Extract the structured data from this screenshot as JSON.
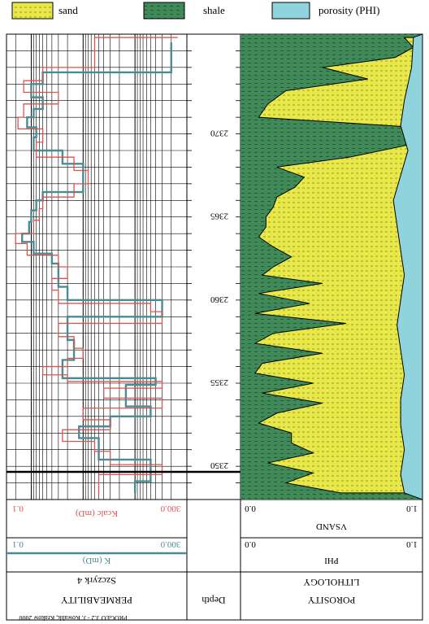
{
  "legend": {
    "sand": "sand",
    "shale": "shale",
    "porosity": "porosity (PHI)"
  },
  "colors": {
    "sand": "#e8e84a",
    "sand_dots": "#8a8a1a",
    "shale": "#3f8a58",
    "shale_dash": "#1e4a2c",
    "porosity": "#8fd4dc",
    "k_measured": "#4a8c94",
    "k_calc": "#d9534f"
  },
  "headers": {
    "left_title": "PERMEABILITY",
    "left_subtitle": "Szczyrk 4",
    "depth": "Depth",
    "right_title_line1": "POROSITY",
    "right_title_line2": "LITHOLOGY"
  },
  "scales": {
    "kcalc": {
      "label": "Kcalc (mD)",
      "min": "0.1",
      "max": "300.0"
    },
    "k": {
      "label": "K (mD)",
      "min": "0.1",
      "max": "300.0"
    },
    "vsand": {
      "label": "VSAND",
      "min": "0.0",
      "max": "1.0"
    },
    "phi": {
      "label": "PHI",
      "min": "0.0",
      "max": "1.0"
    }
  },
  "footer": "PROGEO 3.2 - J. Kowalik, Krakow 2000",
  "chart_data": [
    {
      "type": "line",
      "title": "PERMEABILITY",
      "subtitle": "Szczyrk 4",
      "xscale": "log",
      "xlim": [
        0.1,
        300
      ],
      "ylim": [
        2348,
        2376
      ],
      "ylabel": "Depth",
      "grid": true,
      "series": [
        {
          "name": "K (mD)",
          "y": [
            2375.5,
            2374.5,
            2373.7,
            2373.0,
            2372.2,
            2371.5,
            2371.0,
            2370.4,
            2369.8,
            2369.0,
            2368.2,
            2367.5,
            2366.5,
            2366.0,
            2365.4,
            2364.7,
            2364.0,
            2363.5,
            2362.8,
            2362.2,
            2361.5,
            2360.8,
            2360.0,
            2359.6,
            2359.0,
            2358.4,
            2357.6,
            2357.0,
            2356.4,
            2355.8,
            2355.3,
            2354.9,
            2354.4,
            2353.6,
            2353.0,
            2352.4,
            2351.7,
            2351.2,
            2350.4,
            2349.8,
            2349.1,
            2348.4
          ],
          "x": [
            0.2,
            0.2,
            0.2,
            60,
            100,
            60,
            90,
            120,
            80,
            90,
            25,
            10,
            10,
            60,
            80,
            100,
            110,
            150,
            90,
            40,
            30,
            30,
            20,
            0.3,
            0.3,
            20,
            20,
            15,
            15,
            25,
            25,
            0.4,
            1.5,
            1.5,
            0.5,
            3,
            12,
            5,
            5,
            0.5,
            0.5,
            1
          ]
        },
        {
          "name": "Kcalc (mD)",
          "y": [
            2375.8,
            2375.0,
            2374.0,
            2373.2,
            2372.5,
            2371.8,
            2371.0,
            2370.3,
            2369.5,
            2368.6,
            2367.8,
            2367.0,
            2366.2,
            2365.5,
            2364.8,
            2364.0,
            2363.4,
            2362.7,
            2362.0,
            2361.3,
            2360.6,
            2359.8,
            2359.3,
            2358.6,
            2357.8,
            2357.1,
            2356.5,
            2356.0,
            2355.5,
            2355.1,
            2354.7,
            2354.1,
            2353.5,
            2352.8,
            2352.2,
            2351.5,
            2350.9,
            2350.1,
            2349.5,
            2348.8,
            2348.3
          ],
          "x": [
            0.15,
            6,
            6,
            60,
            140,
            30,
            140,
            180,
            60,
            80,
            15,
            8,
            15,
            60,
            70,
            90,
            200,
            120,
            30,
            20,
            40,
            30,
            0.5,
            0.3,
            30,
            15,
            10,
            20,
            60,
            20,
            0.3,
            4,
            0.3,
            10,
            3,
            25,
            6,
            3,
            0.3,
            5,
            5
          ]
        }
      ]
    },
    {
      "type": "area",
      "title": "POROSITY LITHOLOGY",
      "xlim": [
        0.0,
        1.0
      ],
      "ylim": [
        2348,
        2376
      ],
      "ylabel": "Depth",
      "series": [
        {
          "name": "VSAND",
          "y": [
            2375.8,
            2375.2,
            2374.6,
            2374.0,
            2373.3,
            2372.6,
            2371.8,
            2371.0,
            2370.4,
            2370.0,
            2369.4,
            2368.6,
            2368.0,
            2367.4,
            2366.8,
            2366.2,
            2365.6,
            2365.0,
            2364.4,
            2363.8,
            2363.2,
            2362.6,
            2362.0,
            2361.5,
            2361.0,
            2360.4,
            2359.8,
            2359.2,
            2358.6,
            2358.0,
            2357.4,
            2356.8,
            2356.2,
            2355.6,
            2355.0,
            2354.4,
            2353.8,
            2353.2,
            2352.6,
            2352.0,
            2351.4,
            2350.8,
            2350.2,
            2349.6,
            2349.0,
            2348.4
          ],
          "x": [
            0.1,
            0.05,
            0.15,
            0.55,
            0.3,
            0.75,
            0.85,
            0.9,
            0.05,
            0.1,
            0.05,
            0.4,
            0.8,
            0.65,
            0.7,
            0.8,
            0.82,
            0.86,
            0.86,
            0.9,
            0.82,
            0.72,
            0.82,
            0.88,
            0.55,
            0.9,
            0.62,
            0.92,
            0.42,
            0.82,
            0.92,
            0.55,
            0.88,
            0.92,
            0.6,
            0.88,
            0.55,
            0.8,
            0.9,
            0.72,
            0.72,
            0.6,
            0.85,
            0.6,
            0.75,
            0.45
          ]
        },
        {
          "name": "PHI",
          "y": [
            2375.8,
            2374.0,
            2372.0,
            2370.5,
            2369.0,
            2367.5,
            2366.0,
            2364.5,
            2363.0,
            2361.5,
            2360.0,
            2358.5,
            2357.0,
            2355.5,
            2354.0,
            2352.5,
            2351.0,
            2349.5,
            2348.4
          ],
          "x": [
            0.05,
            0.06,
            0.1,
            0.12,
            0.08,
            0.12,
            0.16,
            0.14,
            0.12,
            0.1,
            0.12,
            0.14,
            0.12,
            0.1,
            0.12,
            0.12,
            0.1,
            0.12,
            0.1
          ]
        }
      ]
    }
  ]
}
